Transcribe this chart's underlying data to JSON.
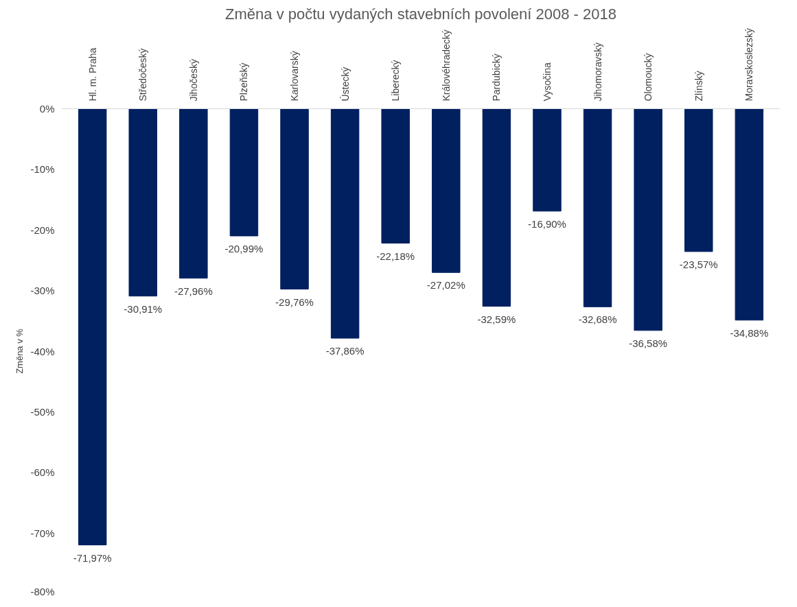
{
  "chart_data": {
    "type": "bar",
    "title": "Změna v počtu vydaných stavebních povolení 2008 - 2018",
    "ylabel": "Změna v %",
    "categories": [
      "Hl. m. Praha",
      "Středočeský",
      "Jihočeský",
      "Plzeňský",
      "Karlovarský",
      "Ústecký",
      "Liberecký",
      "Královéhradecký",
      "Pardubický",
      "Vysočina",
      "Jihomoravský",
      "Olomoucký",
      "Zlínský",
      "Moravskoslezský"
    ],
    "values": [
      -71.97,
      -30.91,
      -27.96,
      -20.99,
      -29.76,
      -37.86,
      -22.18,
      -27.02,
      -32.59,
      -16.9,
      -32.68,
      -36.58,
      -23.57,
      -34.88
    ],
    "value_labels": [
      "-71,97%",
      "-30,91%",
      "-27,96%",
      "-20,99%",
      "-29,76%",
      "-37,86%",
      "-22,18%",
      "-27,02%",
      "-32,59%",
      "-16,90%",
      "-32,68%",
      "-36,58%",
      "-23,57%",
      "-34,88%"
    ],
    "color": "#002060",
    "ylim": [
      -80,
      0
    ],
    "yticks": [
      {
        "value": -80,
        "label": "-80%"
      },
      {
        "value": -70,
        "label": "-70%"
      },
      {
        "value": -60,
        "label": "-60%"
      },
      {
        "value": -50,
        "label": "-50%"
      },
      {
        "value": -40,
        "label": "-40%"
      },
      {
        "value": -30,
        "label": "-30%"
      },
      {
        "value": -20,
        "label": "-20%"
      },
      {
        "value": -10,
        "label": "-10%"
      },
      {
        "value": 0,
        "label": "0%"
      }
    ],
    "grid": false
  }
}
